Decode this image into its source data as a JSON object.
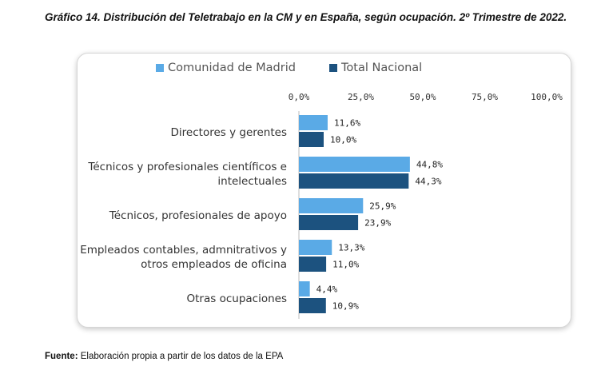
{
  "title": "Gráfico 14. Distribución del Teletrabajo en la CM y en España, según ocupación. 2º Trimestre de 2022.",
  "footer": {
    "label": "Fuente:",
    "text": " Elaboración propia a partir de los datos de la EPA"
  },
  "chart_data": {
    "type": "bar",
    "orientation": "horizontal",
    "xlim": [
      0,
      100
    ],
    "tick_labels": [
      "0,0%",
      "25,0%",
      "50,0%",
      "75,0%",
      "100,0%"
    ],
    "tick_values": [
      0,
      25,
      50,
      75,
      100
    ],
    "legend_position": "top",
    "grid": false,
    "categories": [
      [
        "Directores y gerentes"
      ],
      [
        "Técnicos y profesionales científicos e",
        "intelectuales"
      ],
      [
        "Técnicos, profesionales de apoyo"
      ],
      [
        "Empleados contables, admnitrativos y",
        "otros empleados de oficina"
      ],
      [
        "Otras ocupaciones"
      ]
    ],
    "series": [
      {
        "name": "Comunidad de Madrid",
        "color": "#5aaae6",
        "values": [
          11.6,
          44.8,
          25.9,
          13.3,
          4.4
        ],
        "labels": [
          "11,6%",
          "44,8%",
          "25,9%",
          "13,3%",
          "4,4%"
        ]
      },
      {
        "name": "Total Nacional",
        "color": "#1c527f",
        "values": [
          10.0,
          44.3,
          23.9,
          11.0,
          10.9
        ],
        "labels": [
          "10,0%",
          "44,3%",
          "23,9%",
          "11,0%",
          "10,9%"
        ]
      }
    ]
  }
}
